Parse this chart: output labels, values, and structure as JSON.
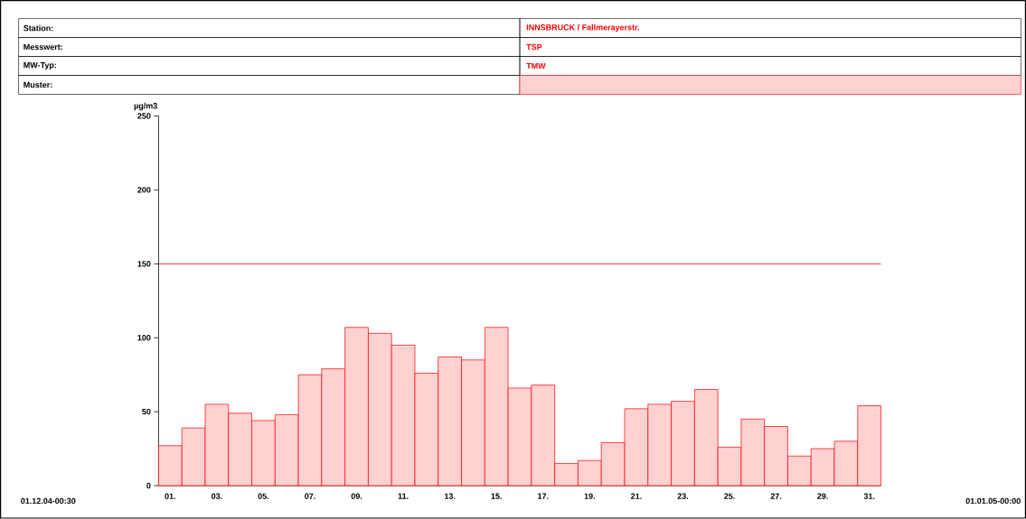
{
  "chart_data": {
    "type": "bar",
    "ylabel": "µg/m3",
    "annotations": [
      "Station:",
      "INNSBRUCK / Fallmerayerstr.",
      "Messwert:",
      "TSP",
      "MW-Typ:",
      "TMW",
      "Muster:",
      "01.12.04-00:30",
      "01.01.05-00:00"
    ],
    "categories": [
      "01.",
      null,
      "03.",
      null,
      "05.",
      null,
      "07.",
      null,
      "09.",
      null,
      "11.",
      null,
      "13.",
      null,
      "15.",
      null,
      "17.",
      null,
      "19.",
      null,
      "21.",
      null,
      "23.",
      null,
      "25.",
      null,
      "27.",
      null,
      "29.",
      null,
      "31."
    ],
    "values": [
      27,
      39,
      55,
      49,
      44,
      48,
      75,
      79,
      107,
      103,
      95,
      76,
      87,
      85,
      107,
      66,
      68,
      15,
      17,
      29,
      52,
      55,
      57,
      65,
      26,
      45,
      40,
      20,
      25,
      30,
      54
    ],
    "color": "#ff0000",
    "ylim": [
      0,
      250
    ],
    "yticks": [
      0,
      50,
      100,
      150,
      200,
      250
    ],
    "ref_lines": [
      {
        "axis": "y",
        "value": 150,
        "color": "#ff0000"
      }
    ]
  }
}
